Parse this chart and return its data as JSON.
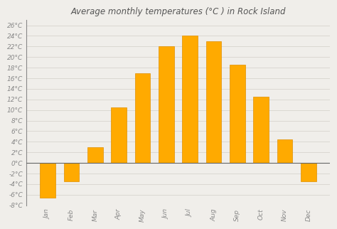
{
  "title": "Average monthly temperatures (°C ) in Rock Island",
  "months": [
    "Jan",
    "Feb",
    "Mar",
    "Apr",
    "May",
    "Jun",
    "Jul",
    "Aug",
    "Sep",
    "Oct",
    "Nov",
    "Dec"
  ],
  "values": [
    -6.5,
    -3.5,
    3.0,
    10.5,
    17.0,
    22.0,
    24.0,
    23.0,
    18.5,
    12.5,
    4.5,
    -3.5
  ],
  "bar_color": "#FFAA00",
  "bar_edge_color": "#E09000",
  "ylim": [
    -8,
    27
  ],
  "yticks": [
    -8,
    -6,
    -4,
    -2,
    0,
    2,
    4,
    6,
    8,
    10,
    12,
    14,
    16,
    18,
    20,
    22,
    24,
    26
  ],
  "background_color": "#f0eeea",
  "plot_bg_color": "#f0eeea",
  "grid_color": "#d8d4ce",
  "title_fontsize": 8.5,
  "tick_fontsize": 6.5,
  "zero_line_color": "#666666",
  "spine_color": "#888888",
  "title_color": "#555555",
  "tick_color": "#888888"
}
